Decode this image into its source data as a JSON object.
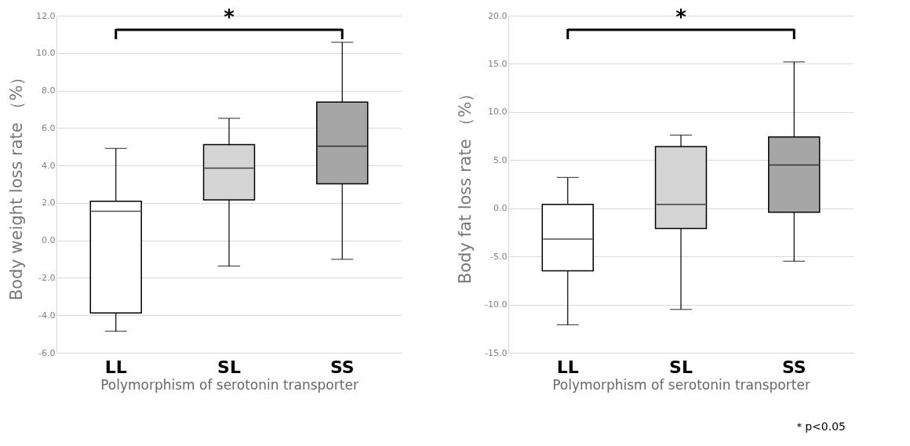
{
  "chart_data": [
    {
      "type": "box",
      "ylabel": "Body weight loss rate （%）",
      "xlabel": "Polymorphism of serotonin transporter",
      "categories": [
        "LL",
        "SL",
        "SS"
      ],
      "boxes": [
        {
          "low": -4.85,
          "q1": -3.88,
          "median": 1.56,
          "q3": 2.09,
          "high": 4.91
        },
        {
          "low": -1.37,
          "q1": 2.16,
          "median": 3.86,
          "q3": 5.11,
          "high": 6.52
        },
        {
          "low": -1.01,
          "q1": 3.02,
          "median": 5.03,
          "q3": 7.39,
          "high": 10.58
        }
      ],
      "colors": [
        "#ffffff",
        "#d4d4d4",
        "#a6a6a6"
      ],
      "ylim": [
        -6,
        12
      ],
      "yticks": [
        {
          "value": -6,
          "label": "-6.0"
        },
        {
          "value": -4,
          "label": "-4.0"
        },
        {
          "value": -2,
          "label": "-2.0"
        },
        {
          "value": 0,
          "label": "0.0"
        },
        {
          "value": 2,
          "label": "2.0"
        },
        {
          "value": 4,
          "label": "4.0"
        },
        {
          "value": 6,
          "label": "6.0"
        },
        {
          "value": 8,
          "label": "8.0"
        },
        {
          "value": 10,
          "label": "10.0"
        },
        {
          "value": 12,
          "label": "12.0"
        }
      ],
      "grid": "y",
      "annotations": [
        "*"
      ]
    },
    {
      "type": "box",
      "ylabel": "Body fat loss rate （%）",
      "xlabel": "Polymorphism of serotonin transporter",
      "categories": [
        "LL",
        "SL",
        "SS"
      ],
      "boxes": [
        {
          "low": -12.1,
          "q1": -6.5,
          "median": -3.2,
          "q3": 0.4,
          "high": 3.2
        },
        {
          "low": -10.5,
          "q1": -2.1,
          "median": 0.4,
          "q3": 6.4,
          "high": 7.6
        },
        {
          "low": -5.5,
          "q1": -0.4,
          "median": 4.5,
          "q3": 7.4,
          "high": 15.2
        }
      ],
      "colors": [
        "#ffffff",
        "#d4d4d4",
        "#a6a6a6"
      ],
      "ylim": [
        -15,
        20
      ],
      "yticks": [
        {
          "value": -15,
          "label": "-15.0"
        },
        {
          "value": -10,
          "label": "-10.0"
        },
        {
          "value": -5,
          "label": "-5.0"
        },
        {
          "value": 0,
          "label": "0.0"
        },
        {
          "value": 5,
          "label": "5.0"
        },
        {
          "value": 10,
          "label": "10.0"
        },
        {
          "value": 15,
          "label": "15.0"
        },
        {
          "value": 20,
          "label": "20.0"
        }
      ],
      "grid": "y",
      "annotations": [
        "*",
        "＊p<0.05"
      ]
    }
  ]
}
